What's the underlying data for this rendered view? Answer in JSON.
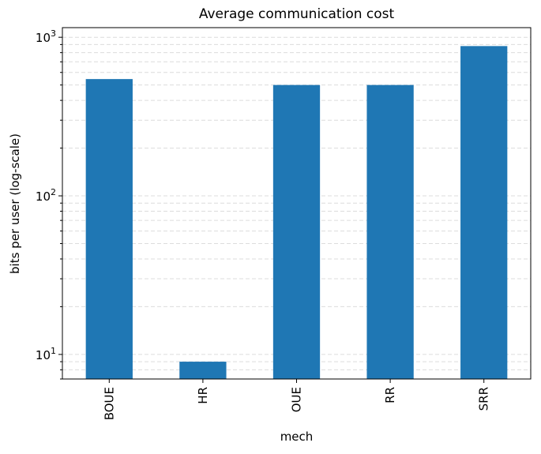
{
  "chart_data": {
    "type": "bar",
    "title": "Average communication cost",
    "xlabel": "mech",
    "ylabel": "bits per user (log-scale)",
    "yscale": "log",
    "ylim": [
      7,
      1150
    ],
    "categories": [
      "BOUE",
      "HR",
      "OUE",
      "RR",
      "SRR"
    ],
    "values": [
      545,
      9,
      500,
      500,
      880
    ],
    "ytick_labels": [
      {
        "base": "10",
        "exp": "1",
        "value": 10
      },
      {
        "base": "10",
        "exp": "2",
        "value": 100
      },
      {
        "base": "10",
        "exp": "3",
        "value": 1000
      }
    ],
    "grid": "y-axis major and minor, dashed",
    "bar_color": "#1f77b4"
  }
}
